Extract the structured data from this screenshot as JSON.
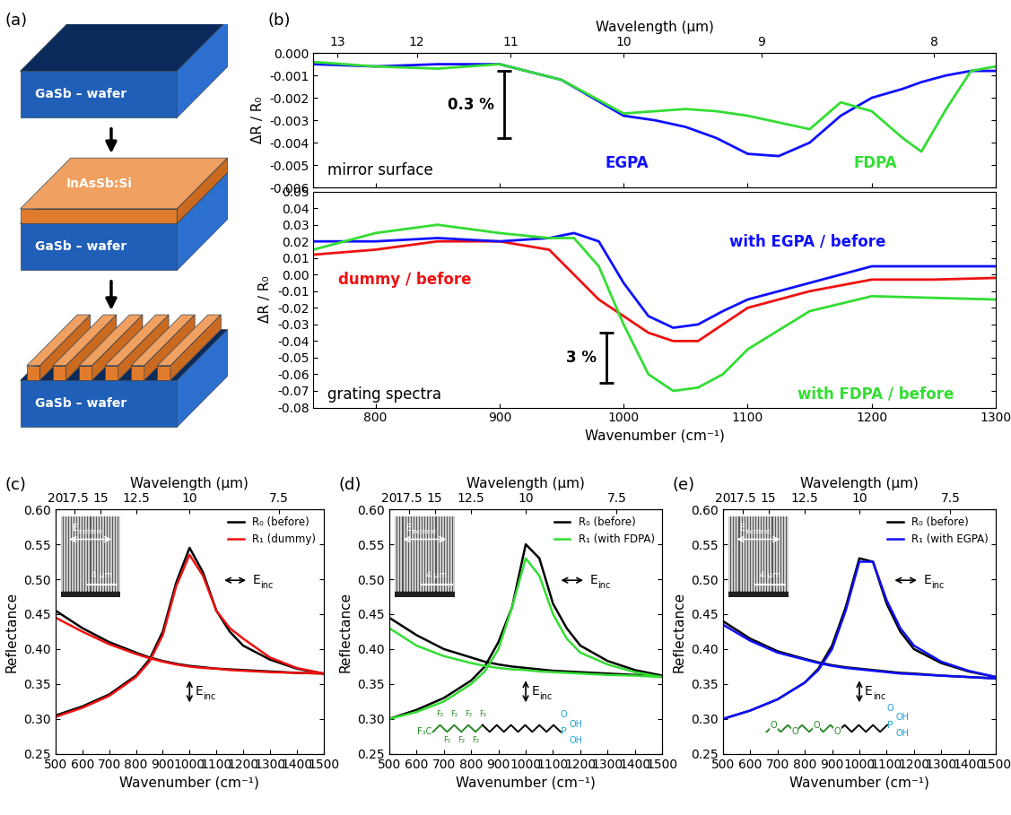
{
  "diagram": {
    "panel_label": "(a)",
    "steps": [
      {
        "wafer": "GaSb – wafer"
      },
      {
        "wafer": "GaSb – wafer",
        "layer": "InAsSb:Si"
      },
      {
        "wafer": "GaSb – wafer",
        "grating_bars": 6
      }
    ]
  },
  "chart_data": [
    {
      "type": "line",
      "panel_label": "(b)",
      "ylabel": "ΔR / R₀",
      "x_top_label": "Wavelength (μm)",
      "x_top_ticks": [
        13,
        12,
        11,
        10,
        9,
        8
      ],
      "xlim": [
        750,
        1300
      ],
      "xticks": [
        800,
        900,
        1000,
        1100,
        1200,
        1300
      ],
      "tick_labels": "y",
      "ylim": [
        -0.006,
        0.0
      ],
      "yticks": [
        {
          "value": -0.006,
          "label": "-0.006"
        },
        {
          "value": -0.005,
          "label": "-0.005"
        },
        {
          "value": -0.004,
          "label": "-0.004"
        },
        {
          "value": -0.003,
          "label": "-0.003"
        },
        {
          "value": -0.002,
          "label": "-0.002"
        },
        {
          "value": -0.001,
          "label": "-0.001"
        },
        {
          "value": 0.0,
          "label": "0.000"
        }
      ],
      "annotation": "mirror surface",
      "scale_bar": {
        "label": "0.3 %",
        "length": 0.003
      },
      "x": [
        750,
        800,
        850,
        900,
        950,
        1000,
        1025,
        1050,
        1075,
        1100,
        1125,
        1150,
        1175,
        1200,
        1225,
        1240,
        1260,
        1280,
        1300
      ],
      "series": [
        {
          "name": "EGPA",
          "color": "#1010ff",
          "values": [
            -0.0005,
            -0.0006,
            -0.0005,
            -0.0005,
            -0.0012,
            -0.0028,
            -0.003,
            -0.0033,
            -0.0038,
            -0.0045,
            -0.0046,
            -0.004,
            -0.0028,
            -0.002,
            -0.0016,
            -0.0013,
            -0.001,
            -0.0008,
            -0.0008
          ]
        },
        {
          "name": "FDPA",
          "color": "#33dd33",
          "values": [
            -0.0004,
            -0.0006,
            -0.0007,
            -0.0005,
            -0.0012,
            -0.0027,
            -0.0026,
            -0.0025,
            -0.0026,
            -0.0028,
            -0.0031,
            -0.0034,
            -0.0022,
            -0.0026,
            -0.0038,
            -0.0044,
            -0.0025,
            -0.0008,
            -0.0006
          ]
        }
      ]
    },
    {
      "type": "line",
      "xlabel": "Wavenumber (cm⁻¹)",
      "ylabel": "ΔR / R₀",
      "xlim": [
        750,
        1300
      ],
      "xticks": [
        800,
        900,
        1000,
        1100,
        1200,
        1300
      ],
      "ylim": [
        -0.08,
        0.05
      ],
      "yticks": [
        {
          "value": -0.08,
          "label": "-0.08"
        },
        {
          "value": -0.07,
          "label": "-0.07"
        },
        {
          "value": -0.06,
          "label": "-0.06"
        },
        {
          "value": -0.05,
          "label": "-0.05"
        },
        {
          "value": -0.04,
          "label": "-0.04"
        },
        {
          "value": -0.03,
          "label": "-0.03"
        },
        {
          "value": -0.02,
          "label": "-0.02"
        },
        {
          "value": -0.01,
          "label": "-0.01"
        },
        {
          "value": 0.0,
          "label": "0.00"
        },
        {
          "value": 0.01,
          "label": "0.01"
        },
        {
          "value": 0.02,
          "label": "0.02"
        },
        {
          "value": 0.03,
          "label": "0.03"
        },
        {
          "value": 0.04,
          "label": "0.04"
        },
        {
          "value": 0.05,
          "label": "0.05"
        }
      ],
      "annotation": "grating spectra",
      "scale_bar": {
        "label": "3 %",
        "length": 0.03
      },
      "x": [
        750,
        800,
        850,
        900,
        940,
        960,
        980,
        1000,
        1020,
        1040,
        1060,
        1080,
        1100,
        1150,
        1200,
        1250,
        1300
      ],
      "series": [
        {
          "name": "dummy / before",
          "color": "#ee1111",
          "values": [
            0.012,
            0.015,
            0.02,
            0.02,
            0.015,
            0.0,
            -0.015,
            -0.025,
            -0.035,
            -0.04,
            -0.04,
            -0.03,
            -0.02,
            -0.01,
            -0.003,
            -0.003,
            -0.002
          ]
        },
        {
          "name": "with EGPA / before",
          "color": "#1010ff",
          "values": [
            0.02,
            0.02,
            0.022,
            0.02,
            0.022,
            0.025,
            0.02,
            -0.005,
            -0.025,
            -0.032,
            -0.03,
            -0.022,
            -0.015,
            -0.005,
            0.005,
            0.005,
            0.005
          ]
        },
        {
          "name": "with FDPA / before",
          "color": "#33dd33",
          "values": [
            0.015,
            0.025,
            0.03,
            0.025,
            0.022,
            0.022,
            0.005,
            -0.03,
            -0.06,
            -0.07,
            -0.068,
            -0.06,
            -0.045,
            -0.022,
            -0.013,
            -0.014,
            -0.015
          ]
        }
      ]
    },
    {
      "type": "line",
      "panel_label": "(c)",
      "xlabel": "Wavenumber (cm⁻¹)",
      "ylabel": "Reflectance",
      "x_top_label": "Wavelength (μm)",
      "x_top_ticks": [
        20,
        17.5,
        15,
        12.5,
        10,
        7.5
      ],
      "xlim": [
        500,
        1500
      ],
      "xticks": [
        500,
        600,
        700,
        800,
        900,
        1000,
        1100,
        1200,
        1300,
        1400,
        1500
      ],
      "ylim": [
        0.25,
        0.6
      ],
      "yticks": [
        {
          "value": 0.25,
          "label": "0.25"
        },
        {
          "value": 0.3,
          "label": "0.30"
        },
        {
          "value": 0.35,
          "label": "0.35"
        },
        {
          "value": 0.4,
          "label": "0.40"
        },
        {
          "value": 0.45,
          "label": "0.45"
        },
        {
          "value": 0.5,
          "label": "0.50"
        },
        {
          "value": 0.55,
          "label": "0.55"
        },
        {
          "value": 0.6,
          "label": "0.60"
        }
      ],
      "legend": "upper right",
      "polarization_label": {
        "symbol": "E",
        "subscript": "inc"
      },
      "inset": {
        "symbol": "E",
        "subscript": "incident",
        "scale_bar": "4 μm"
      },
      "x": [
        500,
        600,
        700,
        800,
        850,
        900,
        950,
        1000,
        1050,
        1100,
        1150,
        1200,
        1300,
        1400,
        1500
      ],
      "series": [
        {
          "name": "R₀ (before)",
          "color": "#000000",
          "values": [
            0.305,
            0.318,
            0.335,
            0.362,
            0.385,
            0.425,
            0.495,
            0.545,
            0.51,
            0.455,
            0.425,
            0.405,
            0.385,
            0.372,
            0.365
          ],
          "values_perpendicular": [
            0.455,
            0.43,
            0.41,
            0.395,
            0.388,
            0.383,
            0.379,
            0.376,
            0.374,
            0.372,
            0.371,
            0.37,
            0.368,
            0.366,
            0.365
          ]
        },
        {
          "name": "R₁ (dummy)",
          "color": "#ee1111",
          "values": [
            0.303,
            0.316,
            0.333,
            0.36,
            0.382,
            0.42,
            0.49,
            0.535,
            0.505,
            0.455,
            0.43,
            0.415,
            0.388,
            0.373,
            0.365
          ],
          "values_perpendicular": [
            0.445,
            0.425,
            0.407,
            0.393,
            0.387,
            0.382,
            0.378,
            0.375,
            0.373,
            0.372,
            0.37,
            0.369,
            0.367,
            0.366,
            0.365
          ]
        }
      ]
    },
    {
      "type": "line",
      "panel_label": "(d)",
      "xlabel": "Wavenumber (cm⁻¹)",
      "ylabel": "Reflectance",
      "x_top_label": "Wavelength (μm)",
      "x_top_ticks": [
        20,
        17.5,
        15,
        12.5,
        10,
        7.5
      ],
      "xlim": [
        500,
        1500
      ],
      "xticks": [
        500,
        600,
        700,
        800,
        900,
        1000,
        1100,
        1200,
        1300,
        1400,
        1500
      ],
      "ylim": [
        0.25,
        0.6
      ],
      "yticks": [
        {
          "value": 0.25,
          "label": "0.25"
        },
        {
          "value": 0.3,
          "label": "0.30"
        },
        {
          "value": 0.35,
          "label": "0.35"
        },
        {
          "value": 0.4,
          "label": "0.40"
        },
        {
          "value": 0.45,
          "label": "0.45"
        },
        {
          "value": 0.5,
          "label": "0.50"
        },
        {
          "value": 0.55,
          "label": "0.55"
        },
        {
          "value": 0.6,
          "label": "0.60"
        }
      ],
      "legend": "upper right",
      "polarization_label": {
        "symbol": "E",
        "subscript": "inc"
      },
      "inset": {
        "symbol": "E",
        "subscript": "incident",
        "scale_bar": "4 μm"
      },
      "molecule": {
        "head": "F₃C",
        "green_labels": [
          "F₂",
          "F₂",
          "F₂",
          "F₂",
          "F₂",
          "F₂",
          "F₂"
        ],
        "label_style": "substituent",
        "alkyl_carbons": 11,
        "headgroup": [
          "P",
          "O",
          "OH",
          "OH"
        ]
      },
      "x": [
        500,
        600,
        700,
        800,
        850,
        900,
        950,
        1000,
        1050,
        1100,
        1150,
        1200,
        1300,
        1400,
        1500
      ],
      "series": [
        {
          "name": "R₀ (before)",
          "color": "#000000",
          "values": [
            0.3,
            0.313,
            0.33,
            0.355,
            0.375,
            0.41,
            0.46,
            0.55,
            0.53,
            0.465,
            0.43,
            0.405,
            0.383,
            0.37,
            0.362
          ],
          "values_perpendicular": [
            0.445,
            0.42,
            0.4,
            0.388,
            0.382,
            0.378,
            0.375,
            0.373,
            0.371,
            0.369,
            0.368,
            0.367,
            0.365,
            0.363,
            0.362
          ]
        },
        {
          "name": "R₁ (with FDPA)",
          "color": "#33dd33",
          "values": [
            0.3,
            0.31,
            0.325,
            0.35,
            0.368,
            0.4,
            0.46,
            0.53,
            0.505,
            0.45,
            0.415,
            0.395,
            0.378,
            0.367,
            0.36
          ],
          "values_perpendicular": [
            0.43,
            0.405,
            0.39,
            0.38,
            0.376,
            0.373,
            0.371,
            0.37,
            0.368,
            0.367,
            0.366,
            0.365,
            0.363,
            0.362,
            0.36
          ]
        }
      ]
    },
    {
      "type": "line",
      "panel_label": "(e)",
      "xlabel": "Wavenumber (cm⁻¹)",
      "ylabel": "Reflectance",
      "x_top_label": "Wavelength (μm)",
      "x_top_ticks": [
        20,
        17.5,
        15,
        12.5,
        10,
        7.5
      ],
      "xlim": [
        500,
        1500
      ],
      "xticks": [
        500,
        600,
        700,
        800,
        900,
        1000,
        1100,
        1200,
        1300,
        1400,
        1500
      ],
      "ylim": [
        0.25,
        0.6
      ],
      "yticks": [
        {
          "value": 0.25,
          "label": "0.25"
        },
        {
          "value": 0.3,
          "label": "0.30"
        },
        {
          "value": 0.35,
          "label": "0.35"
        },
        {
          "value": 0.4,
          "label": "0.40"
        },
        {
          "value": 0.45,
          "label": "0.45"
        },
        {
          "value": 0.5,
          "label": "0.50"
        },
        {
          "value": 0.55,
          "label": "0.55"
        },
        {
          "value": 0.6,
          "label": "0.60"
        }
      ],
      "legend": "upper right",
      "polarization_label": {
        "symbol": "E",
        "subscript": "inc"
      },
      "inset": {
        "symbol": "E",
        "subscript": "incident",
        "scale_bar": "4 μm"
      },
      "molecule": {
        "head": "",
        "green_labels": [
          "O",
          "O",
          "O",
          "O"
        ],
        "label_style": "in_chain",
        "alkyl_carbons": 7,
        "headgroup": [
          "P",
          "O",
          "OH",
          "OH"
        ]
      },
      "x": [
        500,
        600,
        700,
        800,
        850,
        900,
        950,
        1000,
        1050,
        1100,
        1150,
        1200,
        1300,
        1400,
        1500
      ],
      "series": [
        {
          "name": "R₀ (before)",
          "color": "#000000",
          "values": [
            0.3,
            0.312,
            0.328,
            0.352,
            0.372,
            0.405,
            0.46,
            0.53,
            0.525,
            0.465,
            0.425,
            0.4,
            0.38,
            0.368,
            0.36
          ],
          "values_perpendicular": [
            0.44,
            0.415,
            0.397,
            0.386,
            0.381,
            0.377,
            0.374,
            0.372,
            0.37,
            0.368,
            0.366,
            0.365,
            0.362,
            0.36,
            0.358
          ]
        },
        {
          "name": "R₁ (with EGPA)",
          "color": "#1010ff",
          "values": [
            0.3,
            0.312,
            0.328,
            0.352,
            0.37,
            0.4,
            0.455,
            0.525,
            0.525,
            0.47,
            0.43,
            0.405,
            0.382,
            0.369,
            0.36
          ],
          "values_perpendicular": [
            0.435,
            0.412,
            0.395,
            0.385,
            0.38,
            0.376,
            0.373,
            0.371,
            0.369,
            0.367,
            0.365,
            0.364,
            0.362,
            0.36,
            0.358
          ]
        }
      ]
    }
  ]
}
